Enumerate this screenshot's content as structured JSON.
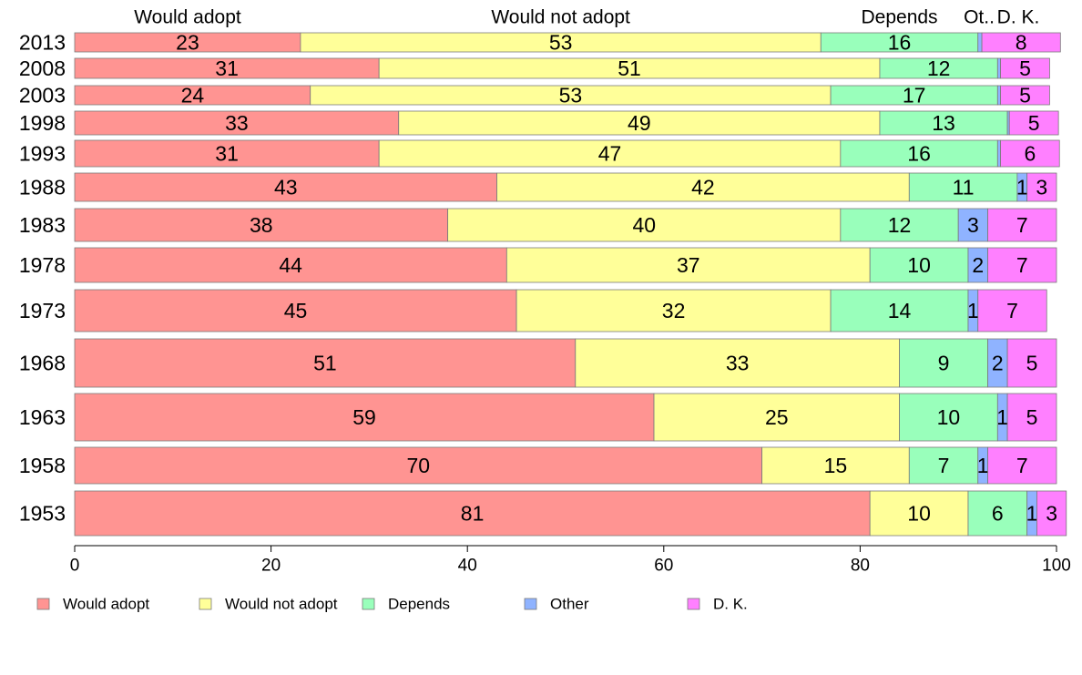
{
  "chart_data": {
    "type": "bar",
    "orientation": "horizontal",
    "stacked": true,
    "categories": [
      "2013",
      "2008",
      "2003",
      "1998",
      "1993",
      "1988",
      "1983",
      "1978",
      "1973",
      "1968",
      "1963",
      "1958",
      "1953"
    ],
    "series": [
      {
        "name": "Would adopt",
        "values": [
          23,
          31,
          24,
          33,
          31,
          43,
          38,
          44,
          45,
          51,
          59,
          70,
          81
        ]
      },
      {
        "name": "Would not adopt",
        "values": [
          53,
          51,
          53,
          49,
          47,
          42,
          40,
          37,
          32,
          33,
          25,
          15,
          10
        ]
      },
      {
        "name": "Depends",
        "values": [
          16,
          12,
          17,
          13,
          16,
          11,
          12,
          10,
          14,
          9,
          10,
          7,
          6
        ]
      },
      {
        "name": "Other",
        "values": [
          0.4,
          0.3,
          0.3,
          0.2,
          0.3,
          1,
          3,
          2,
          1,
          2,
          1,
          1,
          1
        ]
      },
      {
        "name": "D. K.",
        "values": [
          8,
          5,
          5,
          5,
          6,
          3,
          7,
          7,
          7,
          5,
          5,
          7,
          3
        ]
      }
    ],
    "data_labels": [
      [
        "23",
        "53",
        "16",
        "",
        "8"
      ],
      [
        "31",
        "51",
        "12",
        "",
        "5"
      ],
      [
        "24",
        "53",
        "17",
        "",
        "5"
      ],
      [
        "33",
        "49",
        "13",
        "",
        "5"
      ],
      [
        "31",
        "47",
        "16",
        "",
        "6"
      ],
      [
        "43",
        "42",
        "11",
        "1",
        "3"
      ],
      [
        "38",
        "40",
        "12",
        "3",
        "7"
      ],
      [
        "44",
        "37",
        "10",
        "2",
        "7"
      ],
      [
        "45",
        "32",
        "14",
        "1",
        "7"
      ],
      [
        "51",
        "33",
        "9",
        "2",
        "5"
      ],
      [
        "59",
        "25",
        "10",
        "1",
        "5"
      ],
      [
        "70",
        "15",
        "7",
        "1",
        "7"
      ],
      [
        "81",
        "10",
        "6",
        "1",
        "3"
      ]
    ],
    "top_labels": [
      "Would adopt",
      "Would not adopt",
      "Depends",
      "Ot..",
      "D. K."
    ],
    "legend": [
      "Would adopt",
      "Would not adopt",
      "Depends",
      "Other",
      "D. K."
    ],
    "legend_position": "bottom",
    "colors": [
      "#ff9492",
      "#ffff99",
      "#99ffbb",
      "#8fb3ff",
      "#ff80ff"
    ],
    "xlim": [
      0,
      100
    ],
    "x_ticks": [
      0,
      20,
      40,
      60,
      80,
      100
    ],
    "x_tick_labels": [
      "0",
      "20",
      "40",
      "60",
      "80",
      "100"
    ],
    "grid": false,
    "title": "",
    "xlabel": "",
    "ylabel": ""
  }
}
